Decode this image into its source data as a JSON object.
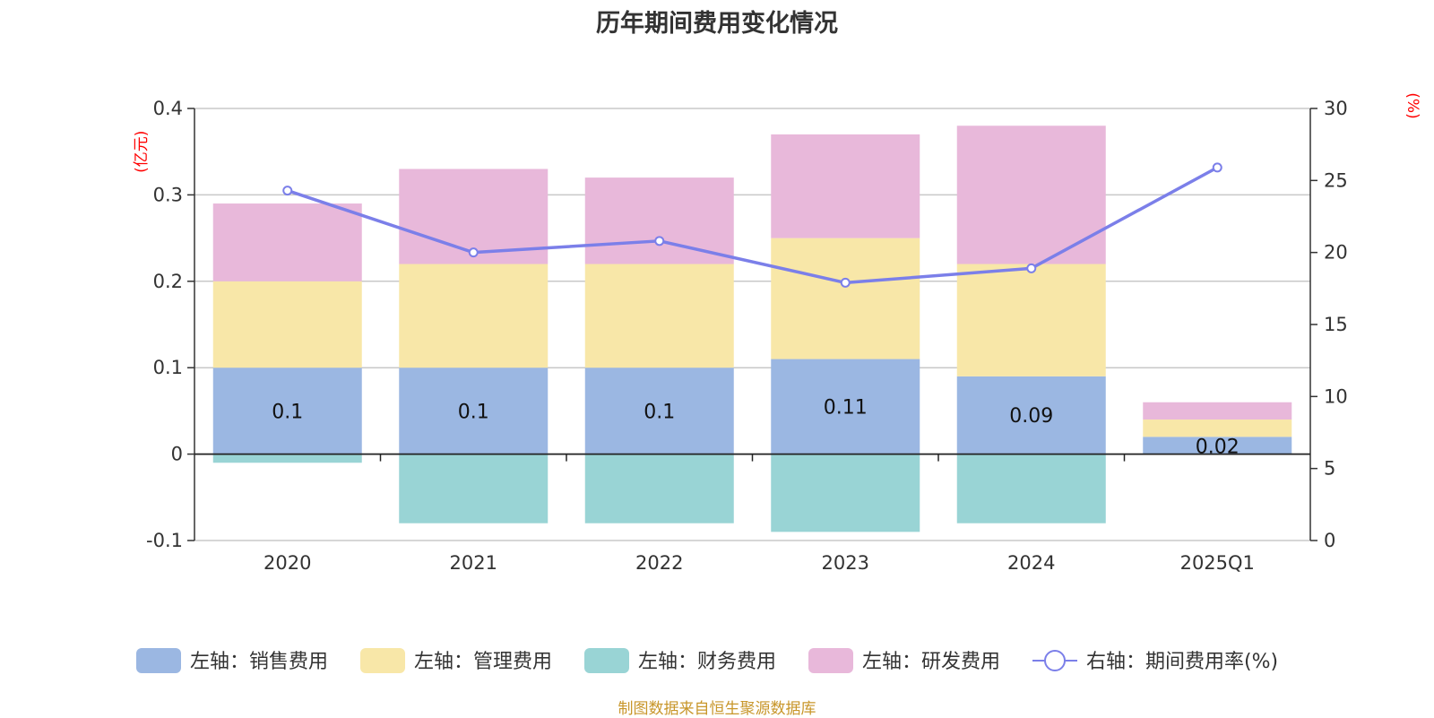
{
  "chart_data": {
    "type": "bar",
    "title": "历年期间费用变化情况",
    "categories": [
      "2020",
      "2021",
      "2022",
      "2023",
      "2024",
      "2025Q1"
    ],
    "left_axis": {
      "unit": "(亿元)",
      "ylim": [
        -0.1,
        0.4
      ],
      "ticks": [
        "-0.1",
        "0",
        "0.1",
        "0.2",
        "0.3",
        "0.4"
      ]
    },
    "right_axis": {
      "unit": "(%)",
      "ylim": [
        0,
        30
      ],
      "ticks": [
        "0",
        "5",
        "10",
        "15",
        "20",
        "25",
        "30"
      ]
    },
    "stacked": true,
    "grid": true,
    "legend_position": "bottom",
    "series": [
      {
        "name": "左轴：销售费用",
        "color": "#9bb7e2",
        "axis": "left",
        "values": [
          0.1,
          0.1,
          0.1,
          0.11,
          0.09,
          0.02
        ],
        "labels": [
          "0.1",
          "0.1",
          "0.1",
          "0.11",
          "0.09",
          "0.02"
        ]
      },
      {
        "name": "左轴：管理费用",
        "color": "#f8e7a8",
        "axis": "left",
        "values": [
          0.1,
          0.12,
          0.12,
          0.14,
          0.13,
          0.02
        ]
      },
      {
        "name": "左轴：财务费用",
        "color": "#99d4d5",
        "axis": "left",
        "values": [
          -0.01,
          -0.08,
          -0.08,
          -0.09,
          -0.08,
          0.0
        ]
      },
      {
        "name": "左轴：研发费用",
        "color": "#e8b8da",
        "axis": "left",
        "values": [
          0.09,
          0.11,
          0.1,
          0.12,
          0.16,
          0.02
        ]
      },
      {
        "name": "右轴：期间费用率(%)",
        "color": "#7b7fe9",
        "axis": "right",
        "type": "line",
        "values": [
          24.3,
          20.0,
          20.8,
          17.9,
          18.9,
          25.9
        ]
      }
    ]
  },
  "source_note": "制图数据来自恒生聚源数据库"
}
